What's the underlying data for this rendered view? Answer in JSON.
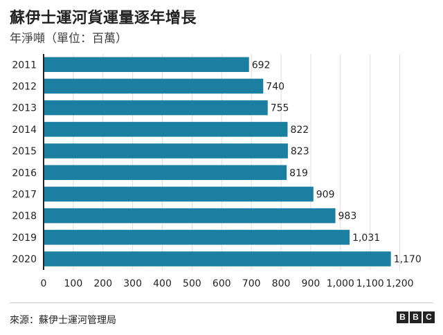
{
  "title": "蘇伊士運河貨運量逐年增長",
  "subtitle": "年淨噸（單位：百萬）",
  "source": "來源：蘇伊士運河管理局",
  "logo": [
    "B",
    "B",
    "C"
  ],
  "colors": {
    "bar": "#1a7fa1",
    "grid": "#dddddd",
    "axis": "#222222",
    "text": "#222222"
  },
  "chart_data": {
    "type": "bar",
    "orientation": "horizontal",
    "categories": [
      "2011",
      "2012",
      "2013",
      "2014",
      "2015",
      "2016",
      "2017",
      "2018",
      "2019",
      "2020"
    ],
    "values": [
      692,
      740,
      755,
      822,
      823,
      819,
      909,
      983,
      1031,
      1170
    ],
    "data_labels": [
      "692",
      "740",
      "755",
      "822",
      "823",
      "819",
      "909",
      "983",
      "1,031",
      "1,170"
    ],
    "xlim": [
      0,
      1200
    ],
    "xticks": [
      0,
      100,
      200,
      300,
      400,
      500,
      600,
      700,
      800,
      900,
      1000,
      1100,
      1200
    ],
    "xtick_labels": [
      "0",
      "100",
      "200",
      "300",
      "400",
      "500",
      "600",
      "700",
      "800",
      "900",
      "1,000",
      "1,100",
      "1,200"
    ],
    "grid": "vertical",
    "legend": "none"
  }
}
